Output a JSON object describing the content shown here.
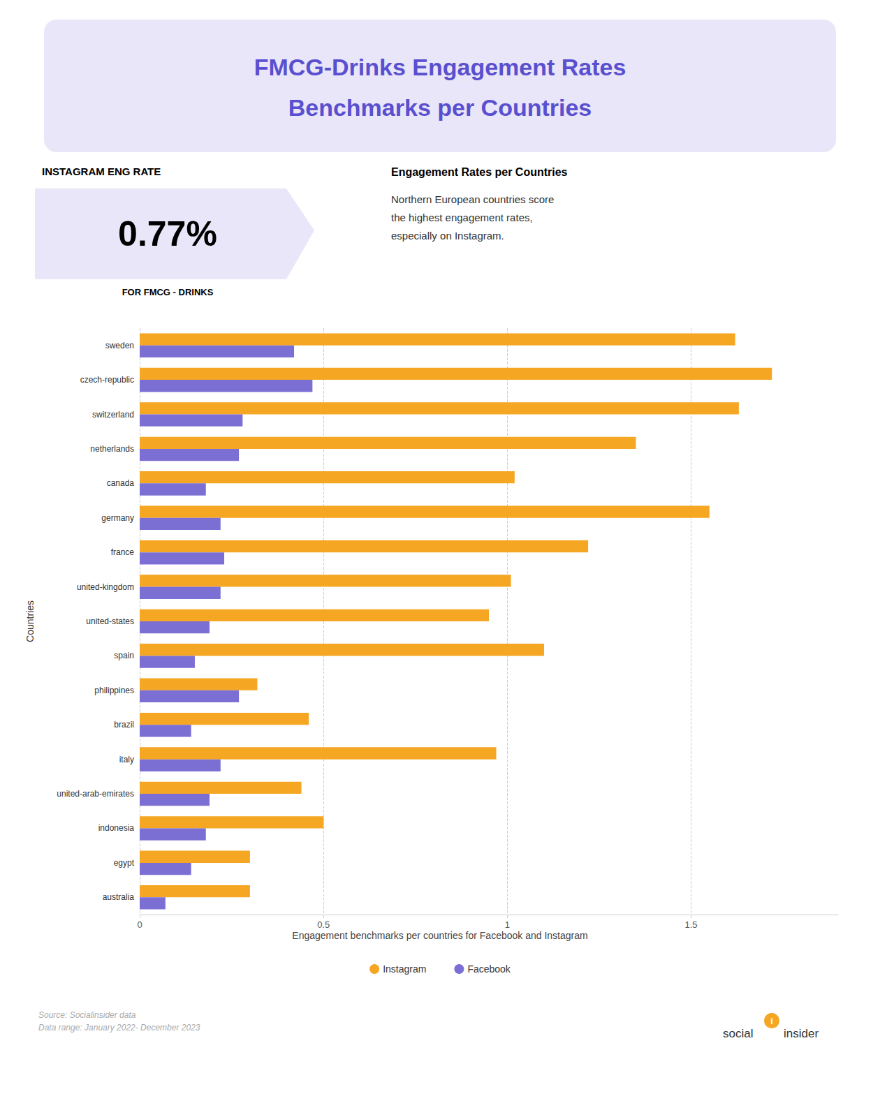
{
  "chart_data": {
    "type": "bar",
    "orientation": "horizontal",
    "title": "FMCG-Drinks Engagement Rates\nBenchmarks per Countries",
    "subtitle": "Engagement benchmarks per countries for Facebook and Instagram",
    "ylabel": "Countries",
    "annotations": [
      "INSTAGRAM ENG RATE",
      "0.77%",
      "FOR FMCG - DRINKS",
      "Engagement Rates per Countries",
      "Northern European countries score\nthe highest engagement rates,\nespecially on Instagram.",
      "Source: Socialinsider data\nData range: January 2022- December 2023",
      "social",
      "insider",
      "i"
    ],
    "categories": [
      "sweden",
      "czech-republic",
      "switzerland",
      "netherlands",
      "canada",
      "germany",
      "france",
      "united-kingdom",
      "united-states",
      "spain",
      "philippines",
      "brazil",
      "italy",
      "united-arab-emirates",
      "indonesia",
      "egypt",
      "australia"
    ],
    "series": [
      {
        "name": "Instagram",
        "color": "#f5a623",
        "values": [
          1.62,
          1.72,
          1.63,
          1.35,
          1.02,
          1.55,
          1.22,
          1.01,
          0.95,
          1.1,
          0.32,
          0.46,
          0.97,
          0.44,
          0.5,
          0.3,
          0.3
        ]
      },
      {
        "name": "Facebook",
        "color": "#7b6fd4",
        "values": [
          0.42,
          0.47,
          0.28,
          0.27,
          0.18,
          0.22,
          0.23,
          0.22,
          0.19,
          0.15,
          0.27,
          0.14,
          0.22,
          0.19,
          0.18,
          0.14,
          0.07
        ]
      }
    ],
    "xlim": [
      0,
      1.9
    ],
    "xticks": [
      0,
      0.5,
      1,
      1.5
    ],
    "grid": true,
    "legend": "bottom"
  }
}
